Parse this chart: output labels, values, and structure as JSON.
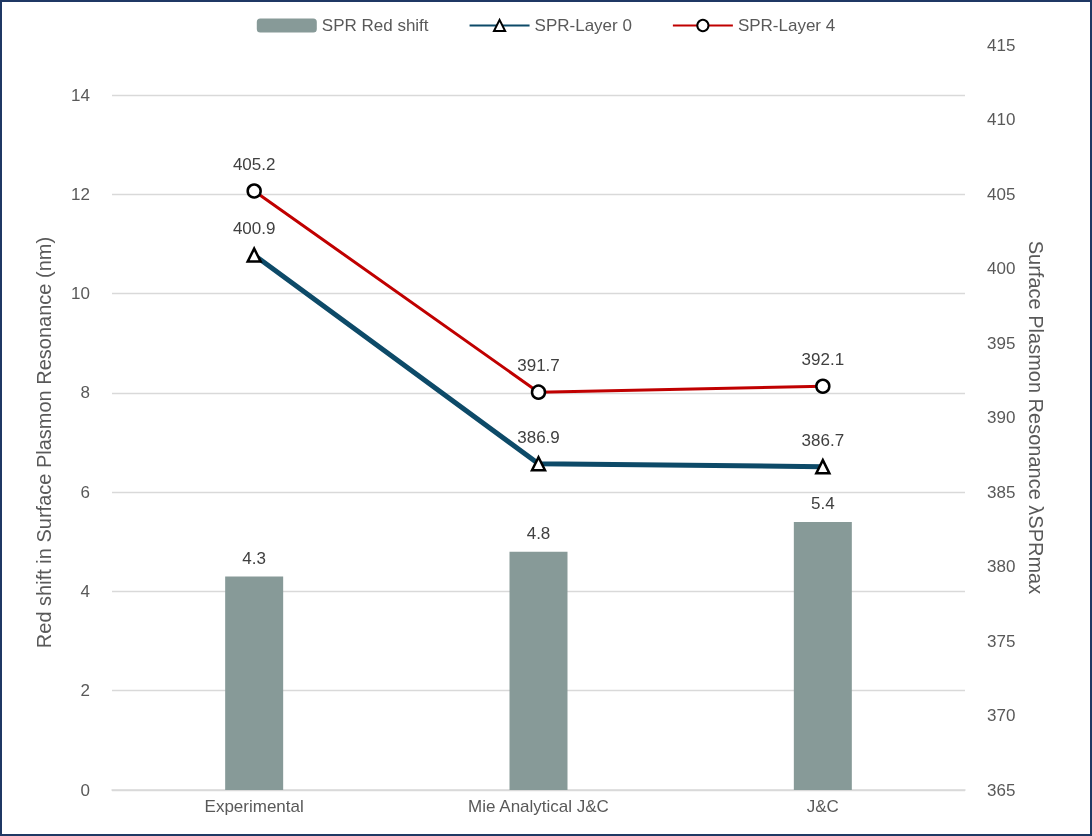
{
  "chart_data": {
    "type": "bar",
    "categories": [
      "Experimental",
      "Mie Analytical J&C",
      "J&C"
    ],
    "ylabel": "Red shift in Surface Plasmon Resonance (nm)",
    "y2label": "Surface Plasmon Resonance λSPRmax",
    "series": [
      {
        "name": "SPR Red shift",
        "color": "#879a98",
        "values": [
          4.3,
          4.8,
          5.4
        ]
      },
      {
        "name": "SPR-Layer 0",
        "type": "line",
        "axis": "y2",
        "color": "#0d4a68",
        "marker": "triangle",
        "values": [
          400.9,
          386.9,
          386.7
        ]
      },
      {
        "name": "SPR-Layer 4",
        "type": "line",
        "axis": "y2",
        "color": "#c00000",
        "marker": "circle",
        "values": [
          405.2,
          391.7,
          392.1
        ]
      }
    ],
    "ylim": [
      0,
      14
    ],
    "yticks": [
      0,
      2,
      4,
      6,
      8,
      10,
      12,
      14
    ],
    "y2lim": [
      365,
      415
    ],
    "y2ticks": [
      365,
      370,
      375,
      380,
      385,
      390,
      395,
      400,
      405,
      410,
      415
    ],
    "grid": "y",
    "legend": "top",
    "data_labels": true
  }
}
